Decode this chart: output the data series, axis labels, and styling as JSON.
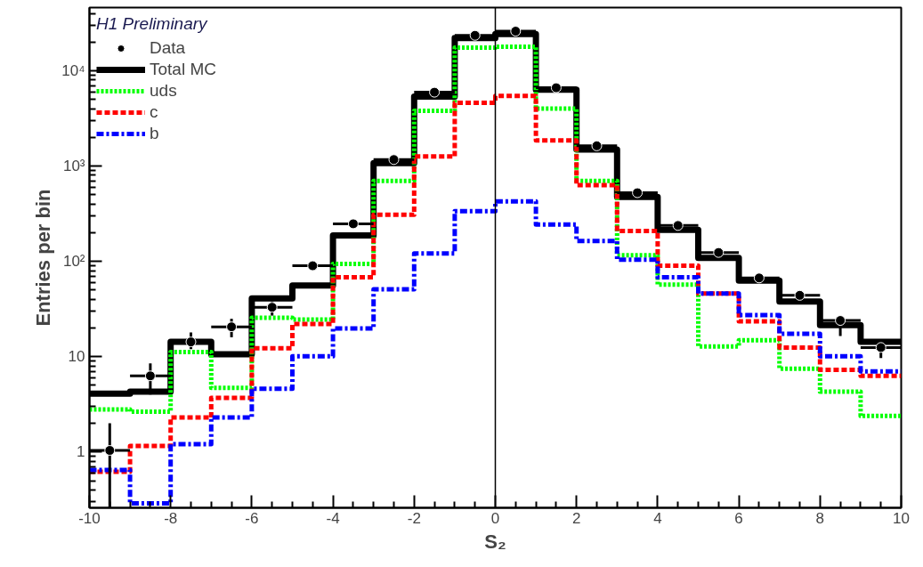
{
  "chart_data": {
    "type": "histogram",
    "xlabel": "S₂",
    "ylabel": "Entries per bin",
    "legend_title": "H1 Preliminary",
    "bins": [
      -10,
      -9,
      -8,
      -7,
      -6,
      -5,
      -4,
      -3,
      -2,
      -1,
      0,
      1,
      2,
      3,
      4,
      5,
      6,
      7,
      8,
      9,
      10
    ],
    "series": [
      {
        "name": "Data",
        "type": "scatter",
        "color": "#000000",
        "marker": "circle",
        "x": [
          -9.5,
          -8.5,
          -7.5,
          -6.5,
          -5.5,
          -4.5,
          -3.5,
          -2.5,
          -1.5,
          -0.5,
          0.5,
          1.5,
          2.5,
          3.5,
          4.5,
          5.5,
          6.5,
          7.5,
          8.5,
          9.5
        ],
        "values": [
          1.04,
          6.3,
          14.3,
          20.6,
          33,
          90,
          248,
          1170,
          5950,
          23500,
          26000,
          6630,
          1630,
          525,
          238,
          124,
          67,
          44,
          24,
          12.5
        ],
        "errors": [
          [
            0.26,
            2.0
          ],
          [
            4.0,
            8.5
          ],
          [
            12,
            18
          ],
          [
            16,
            25
          ],
          [
            27,
            38
          ],
          null,
          null,
          null,
          null,
          null,
          null,
          null,
          null,
          null,
          null,
          null,
          null,
          null,
          [
            16.5,
            25
          ],
          [
            9.7,
            12.5
          ]
        ],
        "xerrors": [
          0.5,
          0.5,
          0.5,
          0.5,
          0.5,
          0.5,
          0.5,
          0.5,
          0.5,
          0.5,
          0.5,
          0.5,
          0.5,
          0.5,
          0.5,
          0.5,
          0.5,
          0.5,
          0.5,
          0.5
        ]
      },
      {
        "name": "Total MC",
        "color": "#000000",
        "line_style": "solid",
        "values": [
          4.1,
          4.3,
          14.3,
          10.6,
          41,
          56,
          187,
          1075,
          5350,
          22000,
          24300,
          6340,
          1490,
          475,
          214,
          109,
          63,
          38,
          21.5,
          14.3
        ]
      },
      {
        "name": "uds",
        "color": "#00ff00",
        "line_style": "dotted",
        "values": [
          2.8,
          2.65,
          11.2,
          4.7,
          25.6,
          24.5,
          94,
          700,
          3800,
          17500,
          17900,
          4000,
          700,
          116,
          57,
          12.8,
          14.9,
          7.5,
          4.3,
          2.4
        ]
      },
      {
        "name": "c",
        "color": "#ff0000",
        "line_style": "dashed",
        "values": [
          0.62,
          1.16,
          2.3,
          3.7,
          12.3,
          22,
          68,
          308,
          1260,
          4600,
          5450,
          1860,
          630,
          208,
          90,
          46,
          23.5,
          12.5,
          7.3,
          6.3
        ]
      },
      {
        "name": "b",
        "color": "#0000ff",
        "line_style": "dashdot",
        "values": [
          0.65,
          0.29,
          1.21,
          2.3,
          4.6,
          10.1,
          19.8,
          51,
          121,
          336,
          425,
          243,
          164,
          104,
          68,
          46,
          27.3,
          17.4,
          10.1,
          7.0
        ]
      }
    ],
    "log": "y",
    "grid": false,
    "legend": "top left",
    "xlim": [
      -10,
      10
    ],
    "xticks": [
      -10,
      -8,
      -6,
      -4,
      -2,
      0,
      2,
      4,
      6,
      8,
      10
    ],
    "ylim": [
      0.26,
      46000
    ],
    "yticks": [
      1,
      10,
      {
        "value": 100,
        "label": "10²"
      },
      {
        "value": 1000,
        "label": "10³"
      },
      {
        "value": 10000,
        "label": "10⁴"
      }
    ],
    "ref_lines": [
      {
        "axis": "x",
        "value": 0,
        "color": "#000000",
        "line_style": "solid"
      }
    ]
  }
}
